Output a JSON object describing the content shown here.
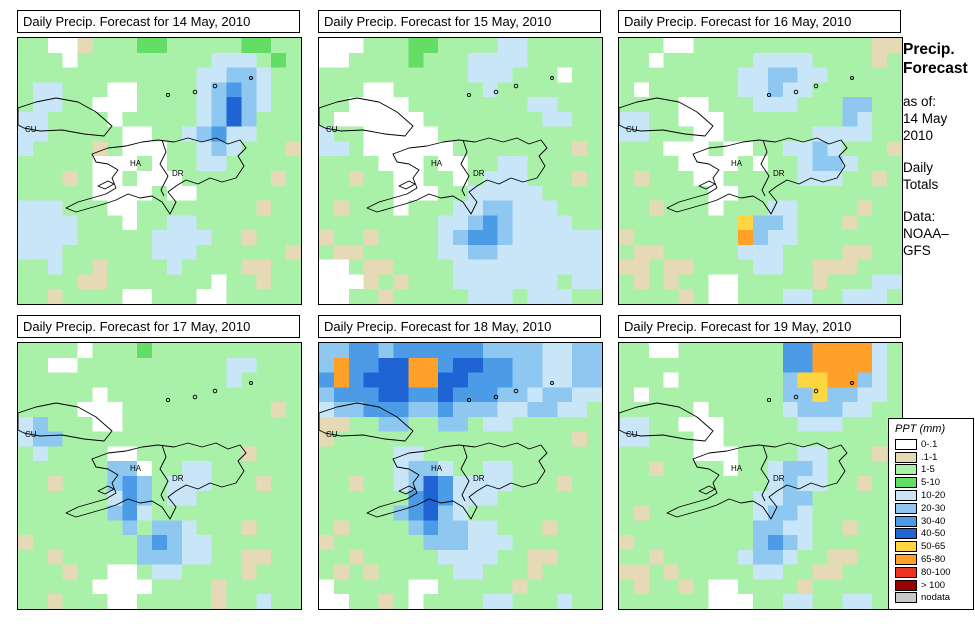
{
  "sidebar": {
    "title_line1": "Precip.",
    "title_line2": "Forecast",
    "as_of_label": "as of:",
    "date_line1": "14 May",
    "date_line2": "2010",
    "totals_line1": "Daily",
    "totals_line2": "Totals",
    "data_label": "Data:",
    "source_line1": "NOAA–",
    "source_line2": "GFS"
  },
  "chart_data": {
    "type": "heatmap",
    "legend_title": "PPT (mm)",
    "units": "mm",
    "region_labels": [
      "CU",
      "HA",
      "DR"
    ],
    "palette": {
      "W": "#ffffff",
      "T": "#e6dab6",
      "g": "#a9f0a9",
      "G": "#63dd63",
      "c": "#c8e6f8",
      "b": "#8ec8f0",
      "B": "#4b9be6",
      "D": "#1f63d4",
      "Y": "#ffd640",
      "O": "#ffa029",
      "R": "#ee3322",
      "M": "#990000",
      "N": "#c8c8c8"
    },
    "scale": [
      {
        "label": "0-.1",
        "code": "W"
      },
      {
        "label": ".1-1",
        "code": "T"
      },
      {
        "label": "1-5",
        "code": "g"
      },
      {
        "label": "5-10",
        "code": "G"
      },
      {
        "label": "10-20",
        "code": "c"
      },
      {
        "label": "20-30",
        "code": "b"
      },
      {
        "label": "30-40",
        "code": "B"
      },
      {
        "label": "40-50",
        "code": "D"
      },
      {
        "label": "50-65",
        "code": "Y"
      },
      {
        "label": "65-80",
        "code": "O"
      },
      {
        "label": "80-100",
        "code": "R"
      },
      {
        "label": "> 100",
        "code": "M"
      },
      {
        "label": "nodata",
        "code": "N"
      }
    ],
    "panels": [
      {
        "title": "Daily Precip. Forecast for  14 May, 2010",
        "date": "14 May, 2010",
        "grid": [
          "ggWWTgggGGgggggGGgg",
          "gggWgggggggggcccgGg",
          "ggggggggggggccbbcgg",
          "gccgggWWggggcbBbcgg",
          "gccggWWWggggcbDbcgg",
          "ccggggWgggggcbDbggg",
          "ccgggggWWggcbBccggg",
          "cggggTgWWWggcbcgggT",
          "gggggWWWgWggccggggg",
          "gggTgWWgWWWggggggTg",
          "gggggWWWWgWWggggggg",
          "cccgggWWggggggggTgg",
          "ccccgggWggccggggggg",
          "ccccgggggccccggTggg",
          "cccggggggcccggggggT",
          "ggcggTggggcggggTTgg",
          "ggggTTgggggggWggTgg",
          "ggTggggWWgggWWggggg"
        ]
      },
      {
        "title": "Daily Precip. Forecast for  15 May, 2010",
        "date": "15 May, 2010",
        "grid": [
          "WWWgggGGggggccggggg",
          "WWggggGgggccccggggg",
          "ggggggggggcccgggWgg",
          "gggWWggggggcggggggg",
          "ggWWWWggggggggccggg",
          "gWWWWWWggggggggccgg",
          "cggWWWWWggggggggggg",
          "ccgWWWWWWggggggggTg",
          "ggggWWWgWWggccggggg",
          "ggTggWWggWgcccgggTg",
          "gggggWWWggcccccgggg",
          "gTgggWgggccbbcccggg",
          "ggggggggccbBbccccgg",
          "TggTggggcbBBbcccccc",
          "gTTgggggccbbccccccc",
          "WWgTTggggcccccccccc",
          "WWWTgTgggcccccccgcc",
          "WWggTgggggcccgcccgg"
        ]
      },
      {
        "title": "Daily Precip. Forecast for  16 May, 2010",
        "date": "16 May, 2010",
        "grid": [
          "gggWWggggggggggggTT",
          "ggWggggggccccggggTg",
          "ggggggggccbbccggggg",
          "gWggggggccbccgggggg",
          "ggggWWgggcccgggbbgg",
          "ccggWWWggggggggbcgg",
          "ccgggWWggggggccccgg",
          "gggWWWgWWggccbcgggT",
          "ggggWWWWgWggcbbcggg",
          "gTgggWWgggggcccggTg",
          "ggggggWWggggggggggg",
          "ggTgggWgggccggggTgg",
          "ggggggggYbbcgggTggg",
          "TgggggggObccggggggg",
          "gTTgggggcccggggTTgg",
          "TTgTTggggccggTTTggg",
          "gTgTggWWgggggTgggcc",
          "ggggTgWWgggccggcccg"
        ]
      },
      {
        "title": "Daily Precip. Forecast for  17 May, 2010",
        "date": "17 May, 2010",
        "grid": [
          "ggggWgggGgggggggggg",
          "ggWWggggggggggccggg",
          "ggggggggggggggcgggg",
          "gggggWggggggggggggg",
          "ggggWWWggggggggggTg",
          "cbgggWWgggggggggggg",
          "cbbgggggggggggggggg",
          "gcggggWWgggggggTggg",
          "ggggggbbWggccgggggg",
          "ggTgggbBbgcccgggTgg",
          "ggggggcBbgccggggggg",
          "ggggggbBcgggggggggg",
          "gggggggbgbbcgggTggg",
          "TgggggggbBbccgggggg",
          "ggTgggggbbbccggTTgg",
          "gggTggWWgccggggTggg",
          "gggggWWWWggggTggggg",
          "ggTgggWWgggggTggcgg"
        ]
      },
      {
        "title": "Daily Precip. Forecast for  18 May, 2010",
        "date": "18 May, 2010",
        "grid": [
          "bbBBbBBBBBBbbbbccbb",
          "bOBBDDOOBDDBBbbccbb",
          "BOBDDDOODDBBBbbccbb",
          "bBBBDDBBDBBBbbcbbcc",
          "cbbBBBbbBbbbccbbccg",
          "TTggbbggbbgccgggggg",
          "TggggggggggggggggTg",
          "gggggccgggggggggggg",
          "gggggcbbcggccgggggg",
          "ggTggcbDBccccgggTgg",
          "ggggggBDBcccggggggg",
          "gggggbBDbcggggggggg",
          "gTggggbBbbccgggTggg",
          "Tggggggbbbcccgggggg",
          "ggTgggggccccggTTggg",
          "gTgTgggggccgggTgggg",
          "WgggggWWgggggTggggg",
          "WWggTgWggggccgggcgg"
        ]
      },
      {
        "title": "Daily Precip. Forecast for  19 May, 2010",
        "date": "19 May, 2010",
        "grid": [
          "ggWWgggggggBBOOOOcg",
          "gggggggggggBBOOOOcg",
          "gggWgggggggbYYOObcg",
          "gWgggggggggbbYbbccg",
          "gggggWgggggcbbbccgg",
          "ccggWWWgggggcccgggT",
          "ccgggWWgggggggggggg",
          "gggggWWWggggccgggTg",
          "ggTggggWggcbbcggggg",
          "ggggggggggcbccggTgg",
          "gggggggggccbbgggggg",
          "gTgggggggcbbcgggggg",
          "gggggggggbbccggTggg",
          "TggggggggbBbcgggggg",
          "ggTgggggcbbcggTTggg",
          "TTgTgggggccggTTgggg",
          "gTggTgWWggggTgggggg",
          "ggggggWWWggccggccgg"
        ]
      }
    ]
  }
}
